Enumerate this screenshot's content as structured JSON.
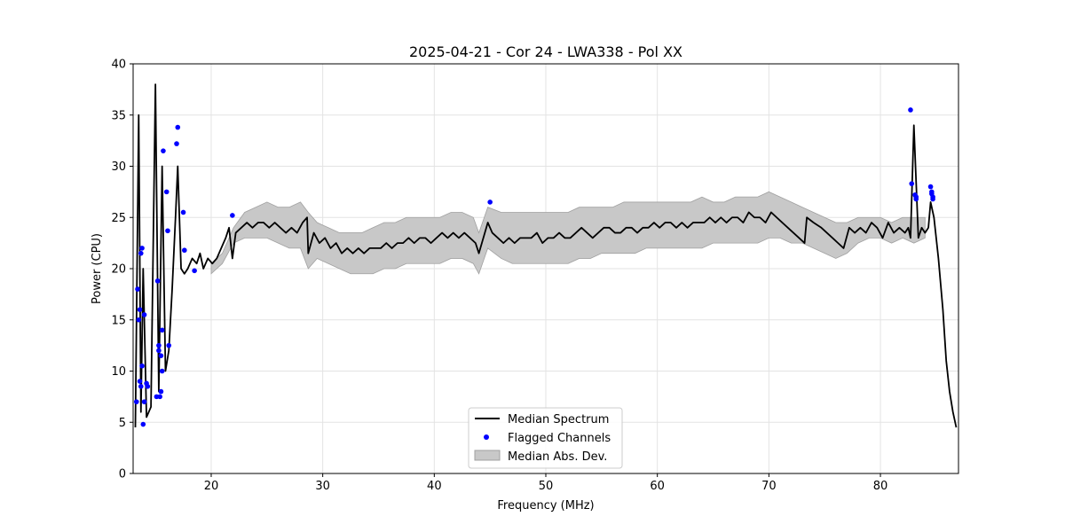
{
  "chart_data": {
    "type": "line",
    "title": "2025-04-21 - Cor 24 - LWA338 - Pol XX",
    "xlabel": "Frequency (MHz)",
    "ylabel": "Power (CPU)",
    "xlim": [
      13.0,
      87.0
    ],
    "ylim": [
      0,
      40
    ],
    "xticks": [
      20,
      30,
      40,
      50,
      60,
      70,
      80
    ],
    "yticks": [
      0,
      5,
      10,
      15,
      20,
      25,
      30,
      35,
      40
    ],
    "grid": true,
    "legend": {
      "position": "bottom-center",
      "entries": [
        "Median Spectrum",
        "Flagged Channels",
        "Median Abs. Dev."
      ]
    },
    "colors": {
      "median": "#000000",
      "flagged": "#0000ff",
      "band": "#c8c8c8",
      "band_edge": "#a0a0a0"
    },
    "series": [
      {
        "name": "Median Spectrum",
        "x": [
          13.2,
          13.5,
          13.7,
          13.9,
          14.2,
          14.6,
          15.0,
          15.3,
          15.6,
          15.9,
          16.2,
          16.5,
          16.8,
          17.0,
          17.3,
          17.6,
          17.9,
          18.3,
          18.7,
          19.0,
          19.3,
          19.7,
          20.1,
          20.5,
          20.9,
          21.3,
          21.6,
          21.9,
          22.2,
          22.7,
          23.2,
          23.7,
          24.2,
          24.7,
          25.2,
          25.7,
          26.2,
          26.7,
          27.2,
          27.7,
          28.2,
          28.6,
          28.7,
          29.2,
          29.7,
          30.2,
          30.7,
          31.2,
          31.7,
          32.2,
          32.7,
          33.2,
          33.7,
          34.2,
          34.7,
          35.2,
          35.7,
          36.2,
          36.7,
          37.2,
          37.7,
          38.2,
          38.7,
          39.2,
          39.7,
          40.2,
          40.7,
          41.2,
          41.7,
          42.2,
          42.7,
          43.2,
          43.7,
          44.0,
          44.8,
          45.2,
          45.7,
          46.2,
          46.7,
          47.2,
          47.7,
          48.2,
          48.7,
          49.2,
          49.7,
          50.2,
          50.7,
          51.2,
          51.7,
          52.2,
          52.7,
          53.2,
          53.7,
          54.2,
          54.7,
          55.2,
          55.7,
          56.2,
          56.7,
          57.2,
          57.7,
          58.2,
          58.7,
          59.2,
          59.7,
          60.2,
          60.7,
          61.2,
          61.7,
          62.2,
          62.7,
          63.2,
          63.7,
          64.2,
          64.7,
          65.2,
          65.7,
          66.2,
          66.7,
          67.2,
          67.7,
          68.2,
          68.7,
          69.2,
          69.7,
          70.2,
          70.7,
          71.2,
          71.7,
          72.2,
          72.7,
          73.2,
          73.4,
          74.0,
          74.7,
          75.2,
          75.7,
          76.2,
          76.7,
          77.2,
          77.7,
          78.2,
          78.7,
          79.2,
          79.7,
          80.2,
          80.7,
          81.2,
          81.7,
          82.2,
          82.5,
          82.7,
          83.0,
          83.4,
          83.7,
          84.0,
          84.3,
          84.5,
          84.8,
          85.2,
          85.6,
          85.9,
          86.2,
          86.5,
          86.8
        ],
        "values": [
          4.5,
          35.0,
          6.0,
          20.0,
          5.5,
          6.5,
          38.0,
          8.0,
          30.0,
          10.0,
          12.0,
          18.0,
          25.0,
          30.0,
          20.0,
          19.5,
          20.0,
          21.0,
          20.5,
          21.5,
          20.0,
          21.0,
          20.5,
          21.0,
          22.0,
          23.0,
          24.0,
          21.0,
          23.5,
          24.0,
          24.5,
          24.0,
          24.5,
          24.5,
          24.0,
          24.5,
          24.0,
          23.5,
          24.0,
          23.5,
          24.5,
          25.0,
          21.5,
          23.5,
          22.5,
          23.0,
          22.0,
          22.5,
          21.5,
          22.0,
          21.5,
          22.0,
          21.5,
          22.0,
          22.0,
          22.0,
          22.5,
          22.0,
          22.5,
          22.5,
          23.0,
          22.5,
          23.0,
          23.0,
          22.5,
          23.0,
          23.5,
          23.0,
          23.5,
          23.0,
          23.5,
          23.0,
          22.5,
          21.5,
          24.5,
          23.5,
          23.0,
          22.5,
          23.0,
          22.5,
          23.0,
          23.0,
          23.0,
          23.5,
          22.5,
          23.0,
          23.0,
          23.5,
          23.0,
          23.0,
          23.5,
          24.0,
          23.5,
          23.0,
          23.5,
          24.0,
          24.0,
          23.5,
          23.5,
          24.0,
          24.0,
          23.5,
          24.0,
          24.0,
          24.5,
          24.0,
          24.5,
          24.5,
          24.0,
          24.5,
          24.0,
          24.5,
          24.5,
          24.5,
          25.0,
          24.5,
          25.0,
          24.5,
          25.0,
          25.0,
          24.5,
          25.5,
          25.0,
          25.0,
          24.5,
          25.5,
          25.0,
          24.5,
          24.0,
          23.5,
          23.0,
          22.5,
          25.0,
          24.5,
          24.0,
          23.5,
          23.0,
          22.5,
          22.0,
          24.0,
          23.5,
          24.0,
          23.5,
          24.5,
          24.0,
          23.0,
          24.5,
          23.5,
          24.0,
          23.5,
          24.0,
          23.0,
          34.0,
          23.0,
          24.0,
          23.5,
          24.0,
          26.5,
          25.0,
          21.0,
          16.0,
          11.0,
          8.0,
          6.0,
          4.5
        ]
      },
      {
        "name": "Median Abs. Dev.",
        "x": [
          20.0,
          21.0,
          22.0,
          23.0,
          24.0,
          25.0,
          26.0,
          27.0,
          28.0,
          28.7,
          29.5,
          30.5,
          31.5,
          32.5,
          33.5,
          34.5,
          35.5,
          36.5,
          37.5,
          38.5,
          39.5,
          40.5,
          41.5,
          42.5,
          43.5,
          44.0,
          44.8,
          46.0,
          47.0,
          48.0,
          49.0,
          50.0,
          51.0,
          52.0,
          53.0,
          54.0,
          55.0,
          56.0,
          57.0,
          58.0,
          59.0,
          60.0,
          61.0,
          62.0,
          63.0,
          64.0,
          65.0,
          66.0,
          67.0,
          68.0,
          69.0,
          70.0,
          71.0,
          72.0,
          73.0,
          74.0,
          75.0,
          76.0,
          77.0,
          78.0,
          79.0,
          80.0,
          81.0,
          82.0,
          83.0,
          84.0
        ],
        "upper": [
          20.5,
          21.5,
          24.0,
          25.5,
          26.0,
          26.5,
          26.0,
          26.0,
          26.5,
          25.5,
          24.5,
          24.0,
          23.5,
          23.5,
          23.5,
          24.0,
          24.5,
          24.5,
          25.0,
          25.0,
          25.0,
          25.0,
          25.5,
          25.5,
          25.0,
          23.5,
          26.0,
          25.5,
          25.5,
          25.5,
          25.5,
          25.5,
          25.5,
          25.5,
          26.0,
          26.0,
          26.0,
          26.0,
          26.5,
          26.5,
          26.5,
          26.5,
          26.5,
          26.5,
          26.5,
          27.0,
          26.5,
          26.5,
          27.0,
          27.0,
          27.0,
          27.5,
          27.0,
          26.5,
          26.0,
          25.5,
          25.0,
          24.5,
          24.5,
          25.0,
          25.0,
          25.0,
          24.5,
          25.0,
          25.0,
          25.0
        ],
        "lower": [
          19.5,
          20.5,
          22.5,
          23.0,
          23.0,
          23.0,
          22.5,
          22.0,
          22.0,
          20.0,
          21.0,
          20.5,
          20.0,
          19.5,
          19.5,
          19.5,
          20.0,
          20.0,
          20.5,
          20.5,
          20.5,
          20.5,
          21.0,
          21.0,
          20.5,
          19.5,
          22.0,
          21.0,
          20.5,
          20.5,
          20.5,
          20.5,
          20.5,
          20.5,
          21.0,
          21.0,
          21.5,
          21.5,
          21.5,
          21.5,
          22.0,
          22.0,
          22.0,
          22.0,
          22.0,
          22.0,
          22.5,
          22.5,
          22.5,
          22.5,
          22.5,
          23.0,
          23.0,
          22.5,
          22.5,
          22.0,
          21.5,
          21.0,
          21.5,
          22.5,
          23.0,
          23.0,
          22.5,
          23.0,
          22.5,
          23.0
        ]
      }
    ],
    "flagged_channels": {
      "name": "Flagged Channels",
      "x": [
        13.3,
        13.4,
        13.5,
        13.6,
        13.6,
        13.7,
        13.7,
        13.8,
        13.8,
        13.9,
        14.0,
        14.0,
        14.2,
        14.3,
        15.1,
        15.2,
        15.3,
        15.3,
        15.4,
        15.5,
        15.5,
        15.6,
        15.6,
        15.7,
        16.0,
        16.1,
        16.2,
        16.9,
        17.0,
        17.5,
        17.6,
        18.5,
        21.9,
        45.0,
        82.7,
        82.8,
        83.1,
        83.2,
        83.2,
        84.5,
        84.6,
        84.6,
        84.7,
        84.7
      ],
      "y": [
        7.0,
        18.0,
        15.0,
        16.0,
        9.0,
        8.5,
        21.5,
        22.0,
        10.5,
        4.8,
        15.5,
        7.0,
        8.8,
        8.5,
        7.5,
        18.8,
        12.5,
        12.0,
        7.5,
        8.0,
        11.5,
        10.0,
        14.0,
        31.5,
        27.5,
        23.7,
        12.5,
        32.2,
        33.8,
        25.5,
        21.8,
        19.8,
        25.2,
        26.5,
        35.5,
        28.3,
        27.2,
        27.0,
        26.8,
        28.0,
        27.5,
        27.3,
        27.0,
        26.8
      ]
    }
  }
}
